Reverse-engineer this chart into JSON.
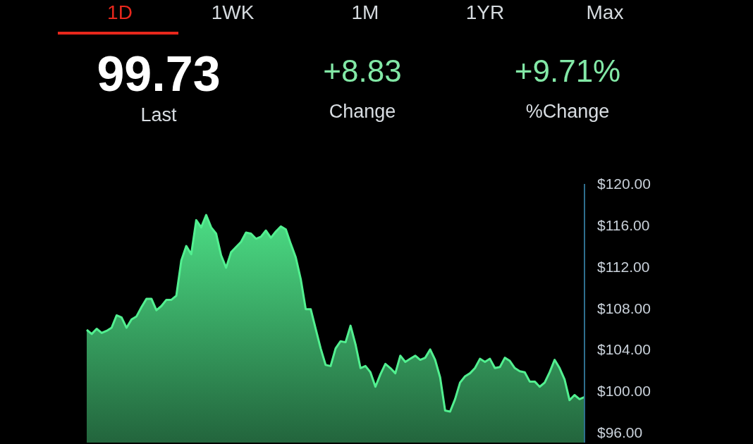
{
  "chart_data": {
    "type": "area",
    "annotations": [
      "1D",
      "1WK",
      "1M",
      "1YR",
      "Max",
      "99.73",
      "Last",
      "+8.83",
      "Change",
      "+9.71%",
      "%Change"
    ],
    "categories": [
      null,
      null,
      null,
      null,
      null,
      null,
      null,
      null,
      null,
      null,
      null,
      null,
      null,
      null,
      null,
      null,
      null,
      null,
      null,
      null,
      null,
      null,
      null,
      null,
      null,
      null,
      null,
      null,
      null,
      null,
      null,
      null,
      null,
      null,
      null,
      null,
      null,
      null,
      null,
      null,
      null,
      null,
      null,
      null,
      null,
      null,
      null,
      null,
      null,
      null,
      null,
      null,
      null,
      null,
      null,
      null,
      null,
      null,
      null,
      null,
      null,
      null,
      null,
      null,
      null,
      null,
      null,
      null,
      null,
      null,
      null,
      null,
      null,
      null,
      null,
      null,
      null,
      null,
      null,
      null,
      null,
      null,
      null,
      null,
      null,
      null,
      null,
      null,
      null,
      null,
      null,
      null,
      null,
      null,
      null,
      null,
      null,
      null,
      null,
      null,
      null
    ],
    "values": [
      105.9,
      105.5,
      106.0,
      105.6,
      105.8,
      106.1,
      107.3,
      107.1,
      106.1,
      106.9,
      107.2,
      108.1,
      108.9,
      108.9,
      107.8,
      108.2,
      108.8,
      108.8,
      109.2,
      112.6,
      114.0,
      113.2,
      116.5,
      115.8,
      117.0,
      115.8,
      115.2,
      113.1,
      111.9,
      113.4,
      113.9,
      114.4,
      115.3,
      115.2,
      114.7,
      114.9,
      115.5,
      114.8,
      115.4,
      115.9,
      115.6,
      114.2,
      112.9,
      110.8,
      107.9,
      107.9,
      106.0,
      104.1,
      102.5,
      102.4,
      104.1,
      104.8,
      104.7,
      106.3,
      104.5,
      102.2,
      102.4,
      101.8,
      100.4,
      101.6,
      102.6,
      102.2,
      101.7,
      103.4,
      102.8,
      103.1,
      103.4,
      103.0,
      103.2,
      104.0,
      103.0,
      101.3,
      98.1,
      98.0,
      99.2,
      100.8,
      101.4,
      101.7,
      102.2,
      103.1,
      102.8,
      103.1,
      102.2,
      102.3,
      103.2,
      102.9,
      102.2,
      101.9,
      101.8,
      100.9,
      100.9,
      100.4,
      100.8,
      101.8,
      103.0,
      102.2,
      101.1,
      99.1,
      99.6,
      99.2,
      99.4
    ],
    "color": "#52f090",
    "ylim": [
      95,
      120
    ],
    "yticks": [
      {
        "value": 96,
        "label": "$96.00"
      },
      {
        "value": 100,
        "label": "$100.00"
      },
      {
        "value": 104,
        "label": "$104.00"
      },
      {
        "value": 108,
        "label": "$108.00"
      },
      {
        "value": 112,
        "label": "$112.00"
      },
      {
        "value": 116,
        "label": "$116.00"
      },
      {
        "value": 120,
        "label": "$120.00"
      }
    ]
  }
}
